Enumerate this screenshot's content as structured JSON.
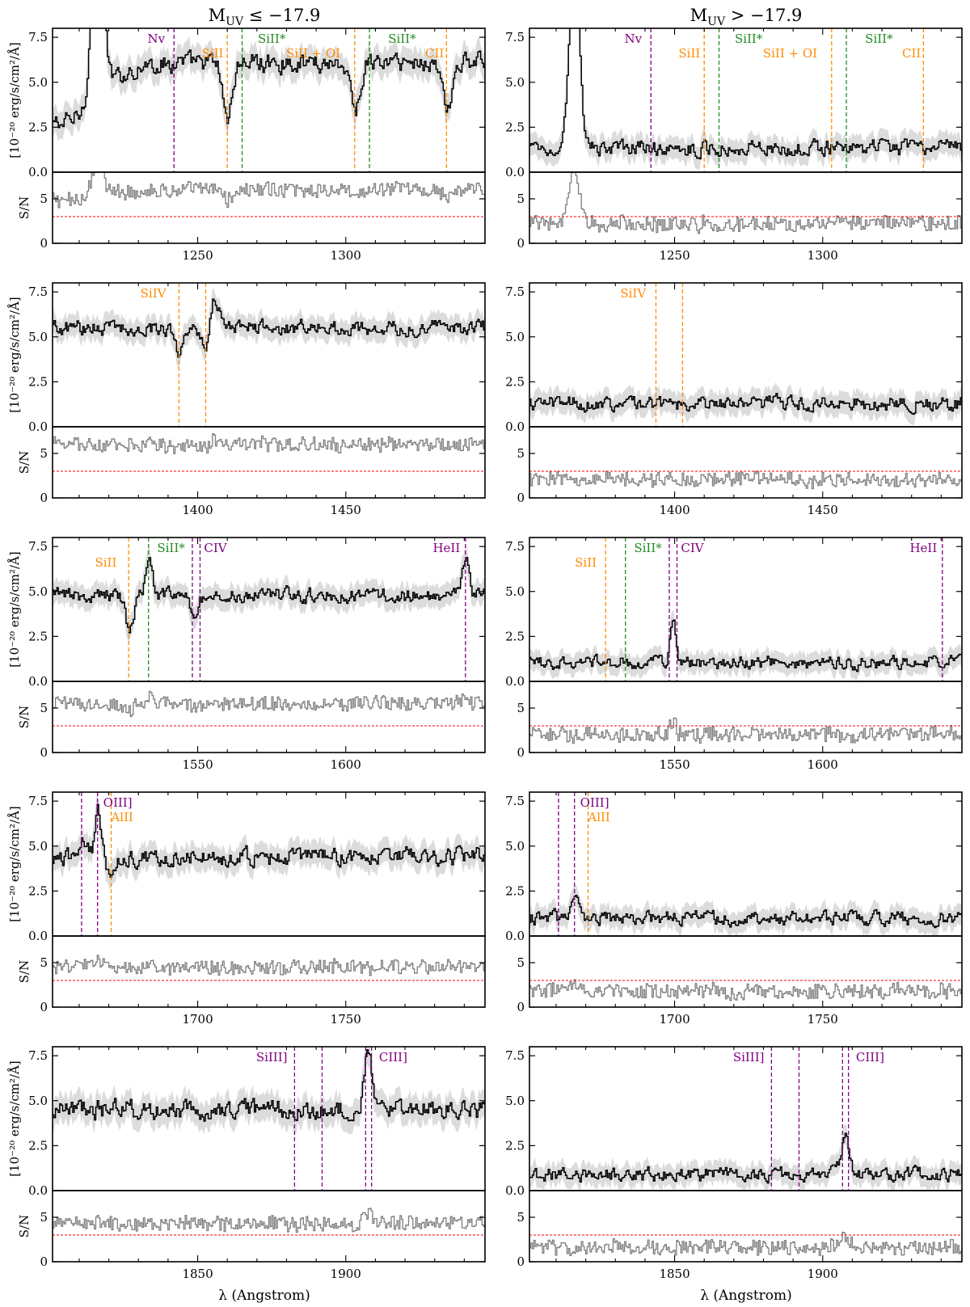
{
  "figure": {
    "columns": [
      {
        "title_main": "M",
        "title_sub": "UV",
        "title_rest": " ≤ −17.9"
      },
      {
        "title_main": "M",
        "title_sub": "UV",
        "title_rest": " > −17.9"
      }
    ],
    "flux_ylabel": "[10⁻²⁰ erg/s/cm²/Å]",
    "sn_ylabel": "S/N",
    "xlabel": "λ (Angstrom)",
    "colors": {
      "flux": "#000000",
      "sn": "#7f7f7f",
      "band": "#dcdcdc",
      "threshold": "#ff0000",
      "orange": "#ff8c00",
      "green": "#228b22",
      "purple": "#800080"
    }
  },
  "chart_data": [
    {
      "type": "line",
      "row": 0,
      "column": 0,
      "xlim": [
        1201,
        1347
      ],
      "flux_ylim": [
        0,
        8.0
      ],
      "sn_ylim": [
        0,
        8
      ],
      "flux_yticks": [
        "0.0",
        "2.5",
        "5.0",
        "7.5"
      ],
      "sn_yticks": [
        "0",
        "5"
      ],
      "xticks": [
        1250,
        1300
      ],
      "sn_threshold": 3,
      "flux_level": 6.1,
      "flux_noise": 0.45,
      "sn_level": 6.0,
      "features": [
        {
          "x": 1203,
          "w": 12,
          "a": -3.4
        },
        {
          "x": 1216,
          "w": 1.8,
          "a": 12
        },
        {
          "x": 1260,
          "w": 1.6,
          "a": -3.0
        },
        {
          "x": 1303,
          "w": 1.6,
          "a": -2.6
        },
        {
          "x": 1334,
          "w": 1.3,
          "a": -3.0
        }
      ],
      "lines": [
        {
          "x": 1242,
          "color": "purple"
        },
        {
          "x": 1260,
          "color": "orange"
        },
        {
          "x": 1265,
          "color": "green"
        },
        {
          "x": 1303,
          "color": "orange"
        },
        {
          "x": 1308,
          "color": "green"
        },
        {
          "x": 1334,
          "color": "orange"
        }
      ],
      "labels": [
        {
          "x": 1236,
          "text": "Nv",
          "color": "purple",
          "rank": 1
        },
        {
          "x": 1255,
          "text": "SiII",
          "color": "orange",
          "rank": 2
        },
        {
          "x": 1275,
          "text": "SiII*",
          "color": "green",
          "rank": 1
        },
        {
          "x": 1289,
          "text": "SiII + OI",
          "color": "orange",
          "rank": 2
        },
        {
          "x": 1319,
          "text": "SiII*",
          "color": "green",
          "rank": 1
        },
        {
          "x": 1330,
          "text": "CII",
          "color": "orange",
          "rank": 2
        }
      ]
    },
    {
      "type": "line",
      "row": 0,
      "column": 1,
      "xlim": [
        1201,
        1347
      ],
      "flux_ylim": [
        0,
        8.0
      ],
      "sn_ylim": [
        0,
        8
      ],
      "flux_yticks": [
        "0.0",
        "2.5",
        "5.0",
        "7.5"
      ],
      "sn_yticks": [
        "0",
        "5"
      ],
      "xticks": [
        1250,
        1300
      ],
      "sn_threshold": 3,
      "flux_level": 1.35,
      "flux_noise": 0.35,
      "sn_level": 2.2,
      "features": [
        {
          "x": 1216,
          "w": 1.6,
          "a": 11
        }
      ],
      "lines": [
        {
          "x": 1242,
          "color": "purple"
        },
        {
          "x": 1260,
          "color": "orange"
        },
        {
          "x": 1265,
          "color": "green"
        },
        {
          "x": 1303,
          "color": "orange"
        },
        {
          "x": 1308,
          "color": "green"
        },
        {
          "x": 1334,
          "color": "orange"
        }
      ],
      "labels": [
        {
          "x": 1236,
          "text": "Nv",
          "color": "purple",
          "rank": 1
        },
        {
          "x": 1255,
          "text": "SiII",
          "color": "orange",
          "rank": 2
        },
        {
          "x": 1275,
          "text": "SiII*",
          "color": "green",
          "rank": 1
        },
        {
          "x": 1289,
          "text": "SiII + OI",
          "color": "orange",
          "rank": 2
        },
        {
          "x": 1319,
          "text": "SiII*",
          "color": "green",
          "rank": 1
        },
        {
          "x": 1330,
          "text": "CII",
          "color": "orange",
          "rank": 2
        }
      ]
    },
    {
      "type": "line",
      "row": 1,
      "column": 0,
      "xlim": [
        1351,
        1497
      ],
      "flux_ylim": [
        0,
        8.0
      ],
      "sn_ylim": [
        0,
        8
      ],
      "flux_yticks": [
        "0.0",
        "2.5",
        "5.0",
        "7.5"
      ],
      "sn_yticks": [
        "0",
        "5"
      ],
      "xticks": [
        1400,
        1450
      ],
      "sn_threshold": 3,
      "flux_level": 5.5,
      "flux_noise": 0.35,
      "sn_level": 6.0,
      "features": [
        {
          "x": 1393.5,
          "w": 1.2,
          "a": -1.4
        },
        {
          "x": 1402.5,
          "w": 1.2,
          "a": -1.2
        },
        {
          "x": 1405.5,
          "w": 1.5,
          "a": 1.8
        }
      ],
      "lines": [
        {
          "x": 1393.7,
          "color": "orange"
        },
        {
          "x": 1402.7,
          "color": "orange"
        }
      ],
      "labels": [
        {
          "x": 1385,
          "text": "SiIV",
          "color": "orange",
          "rank": 1
        }
      ]
    },
    {
      "type": "line",
      "row": 1,
      "column": 1,
      "xlim": [
        1351,
        1497
      ],
      "flux_ylim": [
        0,
        8.0
      ],
      "sn_ylim": [
        0,
        8
      ],
      "flux_yticks": [
        "0.0",
        "2.5",
        "5.0",
        "7.5"
      ],
      "sn_yticks": [
        "0",
        "5"
      ],
      "xticks": [
        1400,
        1450
      ],
      "sn_threshold": 3,
      "flux_level": 1.3,
      "flux_noise": 0.35,
      "sn_level": 2.1,
      "features": [],
      "lines": [
        {
          "x": 1393.7,
          "color": "orange"
        },
        {
          "x": 1402.7,
          "color": "orange"
        }
      ],
      "labels": [
        {
          "x": 1386,
          "text": "SiIV",
          "color": "orange",
          "rank": 1
        }
      ]
    },
    {
      "type": "line",
      "row": 2,
      "column": 0,
      "xlim": [
        1501,
        1647
      ],
      "flux_ylim": [
        0,
        8.0
      ],
      "sn_ylim": [
        0,
        8
      ],
      "flux_yticks": [
        "0.0",
        "2.5",
        "5.0",
        "7.5"
      ],
      "sn_yticks": [
        "0",
        "5"
      ],
      "xticks": [
        1550,
        1600
      ],
      "sn_threshold": 3,
      "flux_level": 4.8,
      "flux_noise": 0.35,
      "sn_level": 5.5,
      "features": [
        {
          "x": 1526.7,
          "w": 1.3,
          "a": -1.9
        },
        {
          "x": 1533.4,
          "w": 1.2,
          "a": 1.9
        },
        {
          "x": 1548.5,
          "w": 1.2,
          "a": -1.4
        },
        {
          "x": 1640.4,
          "w": 1.2,
          "a": 1.8
        }
      ],
      "lines": [
        {
          "x": 1526.7,
          "color": "orange"
        },
        {
          "x": 1533.4,
          "color": "green"
        },
        {
          "x": 1548.2,
          "color": "purple"
        },
        {
          "x": 1550.8,
          "color": "purple"
        },
        {
          "x": 1640.4,
          "color": "purple"
        }
      ],
      "labels": [
        {
          "x": 1519,
          "text": "SiII",
          "color": "orange",
          "rank": 2
        },
        {
          "x": 1541,
          "text": "SiII*",
          "color": "green",
          "rank": 1
        },
        {
          "x": 1556,
          "text": "CIV",
          "color": "purple",
          "rank": 1
        },
        {
          "x": 1634,
          "text": "HeII",
          "color": "purple",
          "rank": 1
        }
      ]
    },
    {
      "type": "line",
      "row": 2,
      "column": 1,
      "xlim": [
        1501,
        1647
      ],
      "flux_ylim": [
        0,
        8.0
      ],
      "sn_ylim": [
        0,
        8
      ],
      "flux_yticks": [
        "0.0",
        "2.5",
        "5.0",
        "7.5"
      ],
      "sn_yticks": [
        "0",
        "5"
      ],
      "xticks": [
        1550,
        1600
      ],
      "sn_threshold": 3,
      "flux_level": 1.05,
      "flux_noise": 0.3,
      "sn_level": 2.0,
      "features": [
        {
          "x": 1549.3,
          "w": 0.9,
          "a": 2.4
        }
      ],
      "lines": [
        {
          "x": 1526.7,
          "color": "orange"
        },
        {
          "x": 1533.4,
          "color": "green"
        },
        {
          "x": 1548.2,
          "color": "purple"
        },
        {
          "x": 1550.8,
          "color": "purple"
        },
        {
          "x": 1640.4,
          "color": "purple"
        }
      ],
      "labels": [
        {
          "x": 1520,
          "text": "SiII",
          "color": "orange",
          "rank": 2
        },
        {
          "x": 1541,
          "text": "SiII*",
          "color": "green",
          "rank": 1
        },
        {
          "x": 1556,
          "text": "CIV",
          "color": "purple",
          "rank": 1
        },
        {
          "x": 1634,
          "text": "HeII",
          "color": "purple",
          "rank": 1
        }
      ]
    },
    {
      "type": "line",
      "row": 3,
      "column": 0,
      "xlim": [
        1651,
        1797
      ],
      "flux_ylim": [
        0,
        8.0
      ],
      "sn_ylim": [
        0,
        8
      ],
      "flux_yticks": [
        "0.0",
        "2.5",
        "5.0",
        "7.5"
      ],
      "sn_yticks": [
        "0",
        "5"
      ],
      "xticks": [
        1700,
        1750
      ],
      "sn_threshold": 3,
      "flux_level": 4.4,
      "flux_noise": 0.4,
      "sn_level": 4.5,
      "features": [
        {
          "x": 1661,
          "w": 1.2,
          "a": 1.0
        },
        {
          "x": 1666.2,
          "w": 1.0,
          "a": 2.5
        },
        {
          "x": 1670.8,
          "w": 1.2,
          "a": -1.5
        }
      ],
      "lines": [
        {
          "x": 1660.8,
          "color": "purple"
        },
        {
          "x": 1666.2,
          "color": "purple"
        },
        {
          "x": 1670.8,
          "color": "orange"
        }
      ],
      "labels": [
        {
          "x": 1673,
          "text": "OIII]",
          "color": "purple",
          "rank": 1
        },
        {
          "x": 1674.5,
          "text": "AlII",
          "color": "orange",
          "rank": 2
        }
      ]
    },
    {
      "type": "line",
      "row": 3,
      "column": 1,
      "xlim": [
        1651,
        1797
      ],
      "flux_ylim": [
        0,
        8.0
      ],
      "sn_ylim": [
        0,
        8
      ],
      "flux_yticks": [
        "0.0",
        "2.5",
        "5.0",
        "7.5"
      ],
      "sn_yticks": [
        "0",
        "5"
      ],
      "xticks": [
        1700,
        1750
      ],
      "sn_threshold": 3,
      "flux_level": 1.0,
      "flux_noise": 0.32,
      "sn_level": 1.8,
      "features": [
        {
          "x": 1666.2,
          "w": 0.9,
          "a": 1.2
        }
      ],
      "lines": [
        {
          "x": 1660.8,
          "color": "purple"
        },
        {
          "x": 1666.2,
          "color": "purple"
        },
        {
          "x": 1670.8,
          "color": "orange"
        }
      ],
      "labels": [
        {
          "x": 1673,
          "text": "OIII]",
          "color": "purple",
          "rank": 1
        },
        {
          "x": 1674.5,
          "text": "AlII",
          "color": "orange",
          "rank": 2
        }
      ]
    },
    {
      "type": "line",
      "row": 4,
      "column": 0,
      "xlim": [
        1801,
        1947
      ],
      "flux_ylim": [
        0,
        8.0
      ],
      "sn_ylim": [
        0,
        8
      ],
      "flux_yticks": [
        "0.0",
        "2.5",
        "5.0",
        "7.5"
      ],
      "sn_yticks": [
        "0",
        "5"
      ],
      "xticks": [
        1850,
        1900
      ],
      "sn_threshold": 3,
      "flux_level": 4.5,
      "flux_noise": 0.45,
      "sn_level": 4.3,
      "features": [
        {
          "x": 1907.5,
          "w": 1.2,
          "a": 3.6
        }
      ],
      "lines": [
        {
          "x": 1882.7,
          "color": "purple"
        },
        {
          "x": 1892.0,
          "color": "purple"
        },
        {
          "x": 1906.7,
          "color": "purple"
        },
        {
          "x": 1908.7,
          "color": "purple"
        }
      ],
      "labels": [
        {
          "x": 1875,
          "text": "SiIII]",
          "color": "purple",
          "rank": 1
        },
        {
          "x": 1916,
          "text": "CIII]",
          "color": "purple",
          "rank": 1
        }
      ]
    },
    {
      "type": "line",
      "row": 4,
      "column": 1,
      "xlim": [
        1801,
        1947
      ],
      "flux_ylim": [
        0,
        8.0
      ],
      "sn_ylim": [
        0,
        8
      ],
      "flux_yticks": [
        "0.0",
        "2.5",
        "5.0",
        "7.5"
      ],
      "sn_yticks": [
        "0",
        "5"
      ],
      "xticks": [
        1850,
        1900
      ],
      "sn_threshold": 3,
      "flux_level": 0.9,
      "flux_noise": 0.32,
      "sn_level": 1.6,
      "features": [
        {
          "x": 1907.5,
          "w": 1.4,
          "a": 1.9
        }
      ],
      "lines": [
        {
          "x": 1882.7,
          "color": "purple"
        },
        {
          "x": 1892.0,
          "color": "purple"
        },
        {
          "x": 1906.7,
          "color": "purple"
        },
        {
          "x": 1908.7,
          "color": "purple"
        }
      ],
      "labels": [
        {
          "x": 1875,
          "text": "SiIII]",
          "color": "purple",
          "rank": 1
        },
        {
          "x": 1916,
          "text": "CIII]",
          "color": "purple",
          "rank": 1
        }
      ]
    }
  ]
}
